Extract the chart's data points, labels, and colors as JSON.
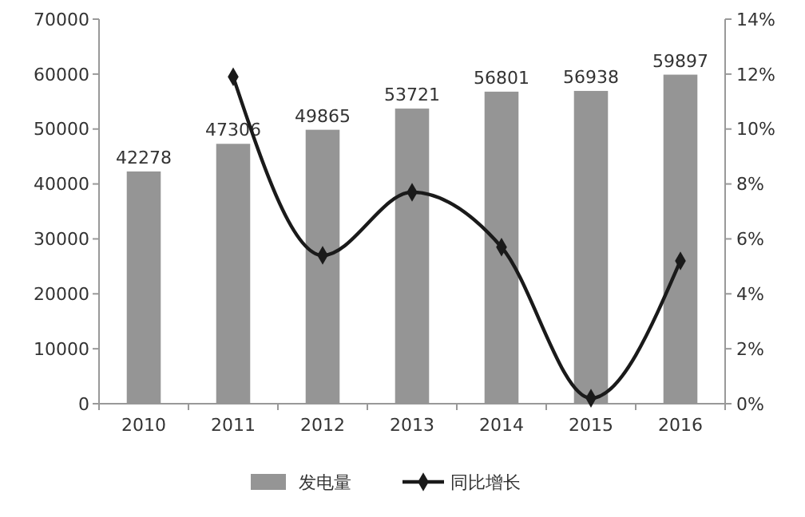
{
  "chart_data": {
    "type": "bar",
    "categories": [
      "2010",
      "2011",
      "2012",
      "2013",
      "2014",
      "2015",
      "2016"
    ],
    "series": [
      {
        "name": "发电量",
        "color": "#959595",
        "values": [
          42278,
          47306,
          49865,
          53721,
          56801,
          56938,
          59897
        ],
        "data_labels": true
      },
      {
        "name": "同比增长",
        "type": "line",
        "axis": "y2",
        "color": "#1a1a1a",
        "marker": "diamond",
        "values": [
          null,
          11.9,
          5.4,
          7.7,
          5.7,
          0.2,
          5.2
        ]
      }
    ],
    "ylim": [
      0,
      70000
    ],
    "yticks": [
      0,
      10000,
      20000,
      30000,
      40000,
      50000,
      60000,
      70000
    ],
    "y2lim": [
      0,
      14
    ],
    "y2ticks": [
      {
        "value": 0,
        "label": "0%"
      },
      {
        "value": 2,
        "label": "2%"
      },
      {
        "value": 4,
        "label": "4%"
      },
      {
        "value": 6,
        "label": "6%"
      },
      {
        "value": 8,
        "label": "8%"
      },
      {
        "value": 10,
        "label": "10%"
      },
      {
        "value": 12,
        "label": "12%"
      },
      {
        "value": 14,
        "label": "14%"
      }
    ],
    "legend": "bottom",
    "grid": false
  }
}
